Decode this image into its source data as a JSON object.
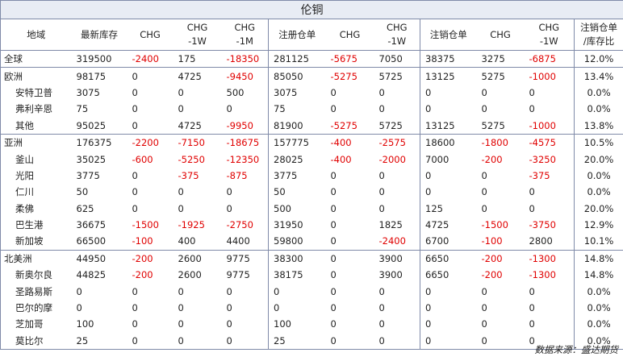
{
  "title": "伦铜",
  "headers": [
    [
      "地域"
    ],
    [
      "最新库存"
    ],
    [
      "CHG"
    ],
    [
      "CHG",
      "-1W"
    ],
    [
      "CHG",
      "-1M"
    ],
    [
      "注册仓单"
    ],
    [
      "CHG"
    ],
    [
      "CHG",
      "-1W"
    ],
    [
      "注销仓单"
    ],
    [
      "CHG"
    ],
    [
      "CHG",
      "-1W"
    ],
    [
      "注销仓单",
      "/库存比"
    ]
  ],
  "rows": [
    {
      "region": "全球",
      "sub": false,
      "sep": true,
      "cells": [
        "319500",
        "-2400",
        "175",
        "-18350",
        "281125",
        "-5675",
        "7050",
        "38375",
        "3275",
        "-6875",
        "12.0%"
      ]
    },
    {
      "region": "欧洲",
      "sub": false,
      "sep": true,
      "cells": [
        "98175",
        "0",
        "4725",
        "-9450",
        "85050",
        "-5275",
        "5725",
        "13125",
        "5275",
        "-1000",
        "13.4%"
      ]
    },
    {
      "region": "安特卫普",
      "sub": true,
      "sep": false,
      "cells": [
        "3075",
        "0",
        "0",
        "500",
        "3075",
        "0",
        "0",
        "0",
        "0",
        "0",
        "0.0%"
      ]
    },
    {
      "region": "弗利辛恩",
      "sub": true,
      "sep": false,
      "cells": [
        "75",
        "0",
        "0",
        "0",
        "75",
        "0",
        "0",
        "0",
        "0",
        "0",
        "0.0%"
      ]
    },
    {
      "region": "其他",
      "sub": true,
      "sep": false,
      "cells": [
        "95025",
        "0",
        "4725",
        "-9950",
        "81900",
        "-5275",
        "5725",
        "13125",
        "5275",
        "-1000",
        "13.8%"
      ]
    },
    {
      "region": "亚洲",
      "sub": false,
      "sep": true,
      "cells": [
        "176375",
        "-2200",
        "-7150",
        "-18675",
        "157775",
        "-400",
        "-2575",
        "18600",
        "-1800",
        "-4575",
        "10.5%"
      ]
    },
    {
      "region": "釜山",
      "sub": true,
      "sep": false,
      "cells": [
        "35025",
        "-600",
        "-5250",
        "-12350",
        "28025",
        "-400",
        "-2000",
        "7000",
        "-200",
        "-3250",
        "20.0%"
      ]
    },
    {
      "region": "光阳",
      "sub": true,
      "sep": false,
      "cells": [
        "3775",
        "0",
        "-375",
        "-875",
        "3775",
        "0",
        "0",
        "0",
        "0",
        "-375",
        "0.0%"
      ]
    },
    {
      "region": "仁川",
      "sub": true,
      "sep": false,
      "cells": [
        "50",
        "0",
        "0",
        "0",
        "50",
        "0",
        "0",
        "0",
        "0",
        "0",
        "0.0%"
      ]
    },
    {
      "region": "柔佛",
      "sub": true,
      "sep": false,
      "cells": [
        "625",
        "0",
        "0",
        "0",
        "500",
        "0",
        "0",
        "125",
        "0",
        "0",
        "20.0%"
      ]
    },
    {
      "region": "巴生港",
      "sub": true,
      "sep": false,
      "cells": [
        "36675",
        "-1500",
        "-1925",
        "-2750",
        "31950",
        "0",
        "1825",
        "4725",
        "-1500",
        "-3750",
        "12.9%"
      ]
    },
    {
      "region": "新加坡",
      "sub": true,
      "sep": false,
      "cells": [
        "66500",
        "-100",
        "400",
        "4400",
        "59800",
        "0",
        "-2400",
        "6700",
        "-100",
        "2800",
        "10.1%"
      ]
    },
    {
      "region": "北美洲",
      "sub": false,
      "sep": true,
      "cells": [
        "44950",
        "-200",
        "2600",
        "9775",
        "38300",
        "0",
        "3900",
        "6650",
        "-200",
        "-1300",
        "14.8%"
      ]
    },
    {
      "region": "新奥尔良",
      "sub": true,
      "sep": false,
      "cells": [
        "44825",
        "-200",
        "2600",
        "9775",
        "38175",
        "0",
        "3900",
        "6650",
        "-200",
        "-1300",
        "14.8%"
      ]
    },
    {
      "region": "圣路易斯",
      "sub": true,
      "sep": false,
      "cells": [
        "0",
        "0",
        "0",
        "0",
        "0",
        "0",
        "0",
        "0",
        "0",
        "0",
        "0.0%"
      ]
    },
    {
      "region": "巴尔的摩",
      "sub": true,
      "sep": false,
      "cells": [
        "0",
        "0",
        "0",
        "0",
        "0",
        "0",
        "0",
        "0",
        "0",
        "0",
        "0.0%"
      ]
    },
    {
      "region": "芝加哥",
      "sub": true,
      "sep": false,
      "cells": [
        "100",
        "0",
        "0",
        "0",
        "100",
        "0",
        "0",
        "0",
        "0",
        "0",
        "0.0%"
      ]
    },
    {
      "region": "莫比尔",
      "sub": true,
      "sep": false,
      "cells": [
        "25",
        "0",
        "0",
        "0",
        "25",
        "0",
        "0",
        "0",
        "0",
        "0",
        "0.0%"
      ]
    }
  ],
  "source": "数据来源：盛达期货"
}
